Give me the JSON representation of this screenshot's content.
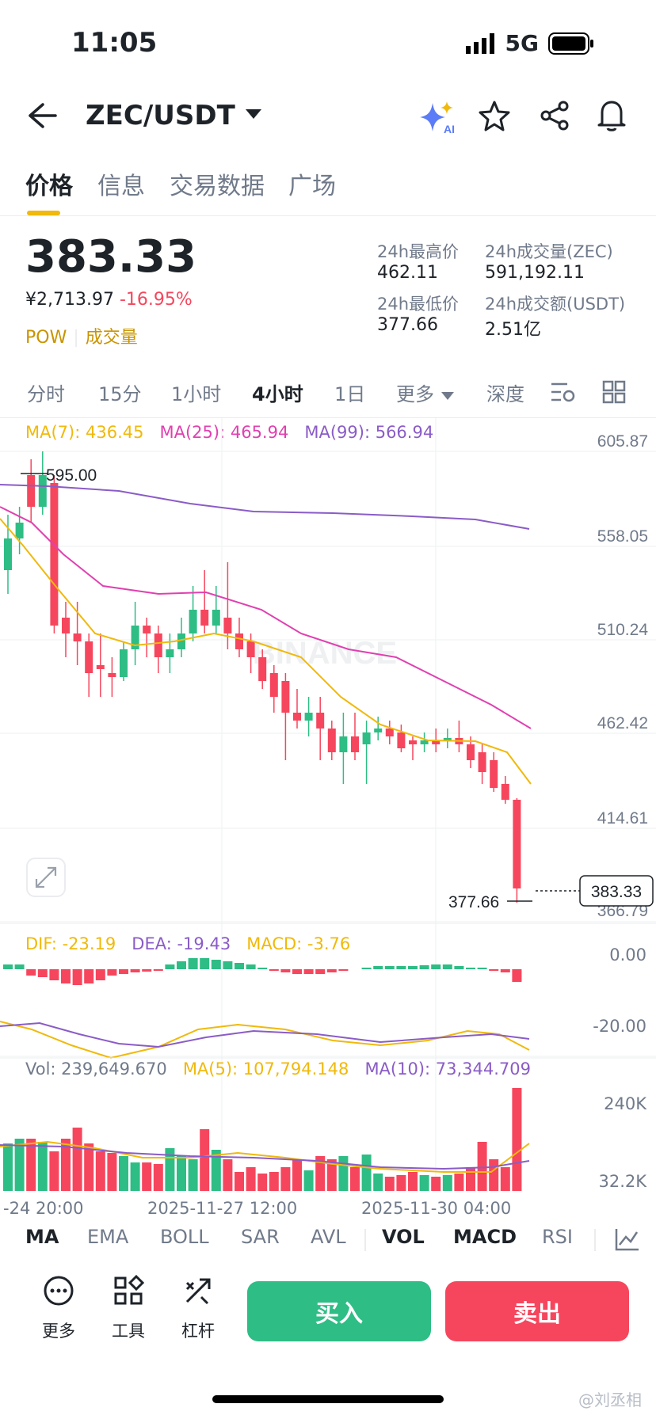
{
  "status": {
    "time": "11:05",
    "network": "5G"
  },
  "header": {
    "pair": "ZEC/USDT"
  },
  "tabs": [
    {
      "label": "价格",
      "active": true
    },
    {
      "label": "信息",
      "active": false
    },
    {
      "label": "交易数据",
      "active": false
    },
    {
      "label": "广场",
      "active": false
    }
  ],
  "summary": {
    "price": "383.33",
    "cny": "¥2,713.97",
    "change": "-16.95%",
    "tag": "POW",
    "tag2": "成交量",
    "high_label": "24h最高价",
    "high": "462.11",
    "low_label": "24h最低价",
    "low": "377.66",
    "vol_label": "24h成交量(ZEC)",
    "vol": "591,192.11",
    "amt_label": "24h成交额(USDT)",
    "amt": "2.51亿"
  },
  "intervals": [
    "分时",
    "15分",
    "1小时",
    "4小时",
    "1日",
    "更多",
    "深度"
  ],
  "active_interval": "4小时",
  "ma": {
    "ma7": "MA(7): 436.45",
    "ma25": "MA(25): 465.94",
    "ma99": "MA(99): 566.94",
    "ma7_color": "#f0b90b",
    "ma25_color": "#e040b0",
    "ma99_color": "#8a5cc7"
  },
  "price_axis": [
    "605.87",
    "558.05",
    "510.24",
    "462.42",
    "414.61",
    "366.79"
  ],
  "annotations": {
    "high_mark": "595.00",
    "low_mark": "377.66",
    "current": "383.33"
  },
  "watermark_text": "BINANCE",
  "macd": {
    "dif": "DIF: -23.19",
    "dea": "DEA: -19.43",
    "macd": "MACD: -3.76",
    "axis": [
      "0.00",
      "-20.00"
    ]
  },
  "volume": {
    "vol": "Vol: 239,649.670",
    "ma5": "MA(5): 107,794.148",
    "ma10": "MA(10): 73,344.709",
    "axis": [
      "240K",
      "32.2K"
    ]
  },
  "x_axis": [
    "-24 20:00",
    "2025-11-27 12:00",
    "2025-11-30 04:00"
  ],
  "indicators": [
    {
      "label": "MA",
      "on": true
    },
    {
      "label": "EMA",
      "on": false
    },
    {
      "label": "BOLL",
      "on": false
    },
    {
      "label": "SAR",
      "on": false
    },
    {
      "label": "AVL",
      "on": false
    },
    {
      "label": "VOL",
      "on": true
    },
    {
      "label": "MACD",
      "on": true
    },
    {
      "label": "RSI",
      "on": false
    }
  ],
  "tools": [
    {
      "label": "更多",
      "icon": "more-circle-icon"
    },
    {
      "label": "工具",
      "icon": "tools-grid-icon"
    },
    {
      "label": "杠杆",
      "icon": "leverage-icon"
    }
  ],
  "buttons": {
    "buy": "买入",
    "sell": "卖出"
  },
  "watermark": "@刘丞相",
  "colors": {
    "up": "#2ebd85",
    "down": "#f6465d",
    "accent": "#f0b90b"
  }
}
